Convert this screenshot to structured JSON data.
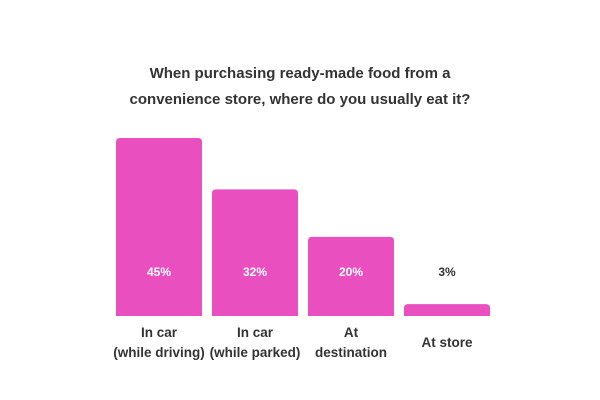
{
  "chart_data": {
    "type": "bar",
    "title_lines": [
      "When purchasing ready-made food from a",
      "convenience store, where do you usually eat it?"
    ],
    "categories": [
      [
        "In car",
        "(while driving)"
      ],
      [
        "In car",
        "(while parked)"
      ],
      [
        "At",
        "destination"
      ],
      [
        "At store"
      ]
    ],
    "values": [
      45,
      32,
      20,
      3
    ],
    "value_labels": [
      "45%",
      "32%",
      "20%",
      "3%"
    ],
    "ylim": [
      0,
      45
    ],
    "grid": false,
    "legend": "none",
    "colors": {
      "bar": "#ea4fbf",
      "value_text_inside": "#ffffff",
      "value_text_outside": "#333333",
      "text": "#333333"
    }
  }
}
